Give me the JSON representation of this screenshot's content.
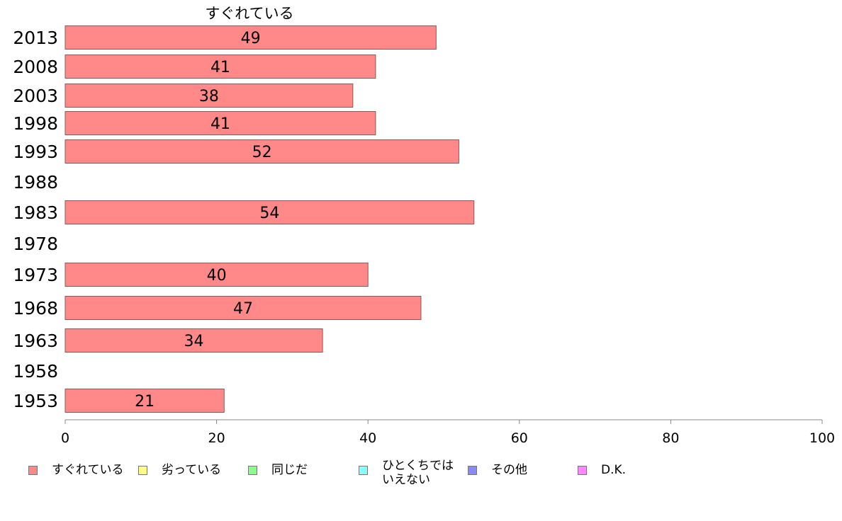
{
  "chart_data": {
    "type": "bar",
    "orientation": "horizontal",
    "title": "すぐれている",
    "categories": [
      "2013",
      "2008",
      "2003",
      "1998",
      "1993",
      "1988",
      "1983",
      "1978",
      "1973",
      "1968",
      "1963",
      "1958",
      "1953"
    ],
    "series": [
      {
        "name": "すぐれている",
        "color": "#ff8888",
        "values": [
          49,
          41,
          38,
          41,
          52,
          null,
          54,
          null,
          40,
          47,
          34,
          null,
          21
        ]
      }
    ],
    "xlim": [
      0,
      100
    ],
    "xticks": [
      "0",
      "20",
      "40",
      "60",
      "80",
      "100"
    ],
    "grid": false,
    "legend_position": "bottom"
  },
  "legend": [
    {
      "label": "すぐれている",
      "color": "#ff8888"
    },
    {
      "label": "劣っている",
      "color": "#ffff88"
    },
    {
      "label": "同じだ",
      "color": "#88ff88"
    },
    {
      "label": "ひとくちでは\nいえない",
      "color": "#88ffff"
    },
    {
      "label": "その他",
      "color": "#8888ff"
    },
    {
      "label": "D.K.",
      "color": "#ff88ff"
    }
  ]
}
